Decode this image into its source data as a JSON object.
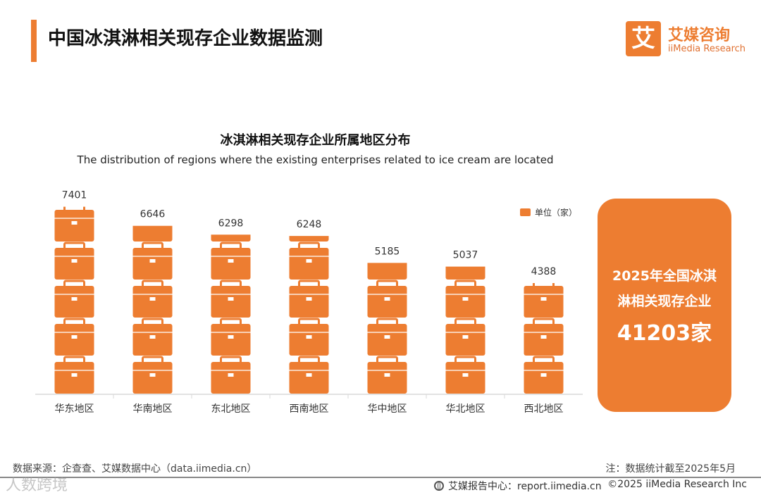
{
  "header": {
    "title": "中国冰淇淋相关现存企业数据监测"
  },
  "brand": {
    "logo_char": "艾",
    "name_cn": "艾媒咨询",
    "name_en": "iiMedia Research"
  },
  "chart_data": {
    "type": "bar",
    "title": "冰淇淋相关现存企业所属地区分布",
    "subtitle": "The distribution of regions where the existing enterprises related to ice cream are located",
    "legend": "单位（家）",
    "categories": [
      "华东地区",
      "华南地区",
      "东北地区",
      "西南地区",
      "华中地区",
      "华北地区",
      "西北地区"
    ],
    "values": [
      7401,
      6646,
      6298,
      6248,
      5185,
      5037,
      4388
    ],
    "value_labels": [
      "7401",
      "6646",
      "6298",
      "6248",
      "5185",
      "5037",
      "4388"
    ],
    "ylim": [
      0,
      7500
    ],
    "grid": false,
    "legend_position": "top-right"
  },
  "summary": {
    "line1": "2025年全国冰淇",
    "line2": "淋相关现存企业",
    "total": "41203家"
  },
  "footer": {
    "source": "数据来源：企查查、艾媒数据中心（data.iimedia.cn）",
    "note": "注：数据统计截至2025年5月",
    "site": "艾媒报告中心：report.iimedia.cn",
    "copyright": "©2025  iiMedia Research  Inc",
    "watermark": "人数跨境"
  },
  "colors": {
    "accent": "#ED7D31",
    "accent_light": "#F7C9A6",
    "text": "#222222",
    "axis": "#D9D9D9"
  }
}
